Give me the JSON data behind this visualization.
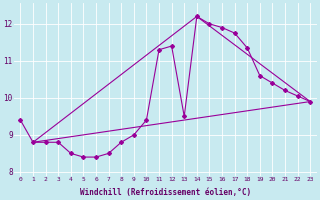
{
  "xlabel": "Windchill (Refroidissement éolien,°C)",
  "ylabel": "",
  "bg_color": "#c8eaf0",
  "line_color": "#990099",
  "xlim": [
    -0.5,
    23.5
  ],
  "ylim": [
    7.9,
    12.55
  ],
  "yticks": [
    8,
    9,
    10,
    11,
    12
  ],
  "xticks": [
    0,
    1,
    2,
    3,
    4,
    5,
    6,
    7,
    8,
    9,
    10,
    11,
    12,
    13,
    14,
    15,
    16,
    17,
    18,
    19,
    20,
    21,
    22,
    23
  ],
  "series1_x": [
    0,
    1,
    2,
    3,
    4,
    5,
    6,
    7,
    8,
    9,
    10,
    11,
    12,
    13,
    14,
    15,
    16,
    17,
    18,
    19,
    20,
    21,
    22,
    23
  ],
  "series1_y": [
    9.4,
    8.8,
    8.8,
    8.8,
    8.5,
    8.4,
    8.4,
    8.5,
    8.8,
    9.0,
    9.4,
    11.3,
    11.4,
    9.5,
    12.2,
    12.0,
    11.9,
    11.75,
    11.35,
    10.6,
    10.4,
    10.2,
    10.05,
    9.9
  ],
  "line1_x": [
    1,
    23
  ],
  "line1_y": [
    8.8,
    9.9
  ],
  "line2_x": [
    1,
    14
  ],
  "line2_y": [
    8.8,
    12.2
  ],
  "line3_x": [
    14,
    23
  ],
  "line3_y": [
    12.2,
    9.9
  ]
}
